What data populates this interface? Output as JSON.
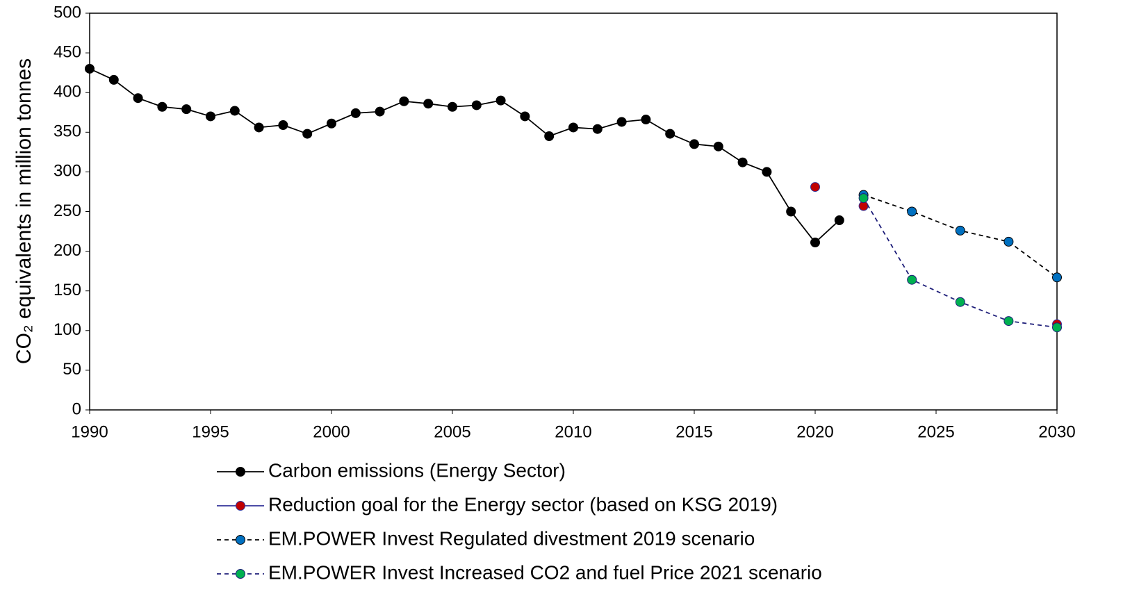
{
  "chart_data": {
    "type": "line",
    "y_label": "CO₂ equivalents in million tonnes",
    "xlim": [
      1990,
      2030
    ],
    "xticks": [
      1990,
      1995,
      2000,
      2005,
      2010,
      2015,
      2020,
      2025,
      2030
    ],
    "ylim": [
      0,
      500
    ],
    "yticks": [
      0,
      50,
      100,
      150,
      200,
      250,
      300,
      350,
      400,
      450,
      500
    ],
    "grid": false,
    "legend": "bottom",
    "series": [
      {
        "name": "Carbon emissions (Energy Sector)",
        "color": "#000000",
        "marker_color": "#000000",
        "dash": "solid",
        "x": [
          1990,
          1991,
          1992,
          1993,
          1994,
          1995,
          1996,
          1997,
          1998,
          1999,
          2000,
          2001,
          2002,
          2003,
          2004,
          2005,
          2006,
          2007,
          2008,
          2009,
          2010,
          2011,
          2012,
          2013,
          2014,
          2015,
          2016,
          2017,
          2018,
          2019,
          2020,
          2021
        ],
        "values": [
          430,
          416,
          393,
          382,
          379,
          370,
          377,
          356,
          359,
          348,
          361,
          374,
          376,
          389,
          386,
          382,
          384,
          390,
          370,
          345,
          356,
          354,
          363,
          366,
          348,
          335,
          332,
          312,
          300,
          250,
          211,
          239
        ]
      },
      {
        "name": "Reduction goal for the Energy sector (based on KSG 2019)",
        "color": "#333399",
        "marker_color": "#c00000",
        "dash": "solid",
        "x": [
          2020,
          2021,
          2022,
          2026,
          2030
        ],
        "values": [
          281,
          null,
          257,
          null,
          108
        ]
      },
      {
        "name": "EM.POWER Invest Regulated divestment 2019 scenario",
        "color": "#000000",
        "marker_color": "#0070c0",
        "dash": "dashed",
        "x": [
          2022,
          2024,
          2026,
          2028,
          2030
        ],
        "values": [
          271,
          250,
          226,
          212,
          167
        ]
      },
      {
        "name": "EM.POWER Invest Increased CO2 and fuel Price 2021 scenario",
        "color": "#1f1f7a",
        "marker_color": "#00b050",
        "dash": "dashed",
        "x": [
          2022,
          2024,
          2026,
          2028,
          2030
        ],
        "values": [
          267,
          164,
          136,
          112,
          104
        ]
      }
    ]
  }
}
